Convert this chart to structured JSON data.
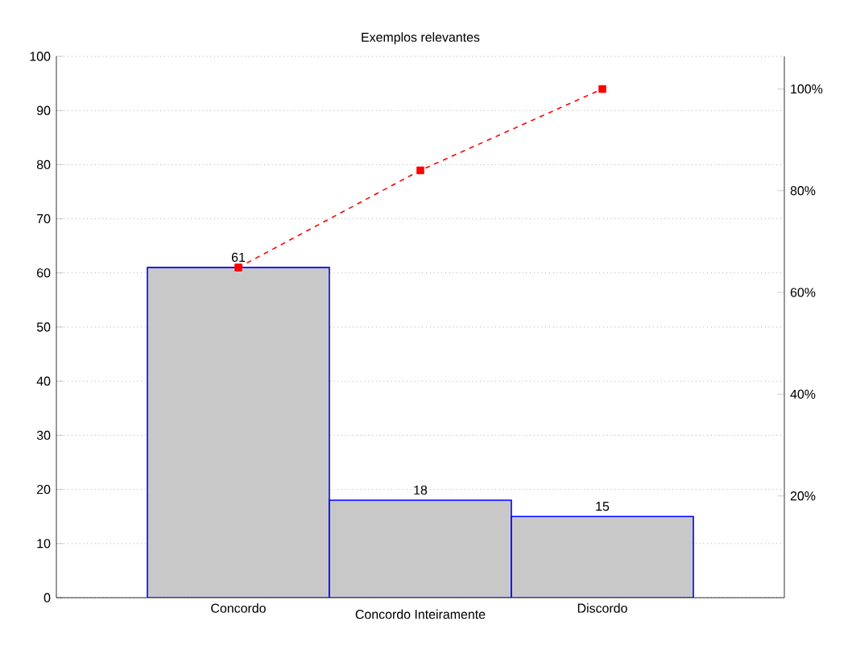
{
  "chart_data": {
    "type": "bar",
    "title": "Exemplos relevantes",
    "categories": [
      "Concordo",
      "Concordo Inteiramente",
      "Discordo"
    ],
    "series": [
      {
        "color": "#c8c8c8",
        "values": [
          61,
          18,
          15
        ],
        "value_labels": [
          "61",
          "18",
          "15"
        ]
      },
      {
        "type": "line",
        "axis": "y2",
        "color": "#ff0000",
        "values": [
          64.9,
          84.0,
          100
        ],
        "marker": "square",
        "line_style": "dashed"
      }
    ],
    "ylim": [
      0,
      100
    ],
    "yticks": [
      0,
      10,
      20,
      30,
      40,
      50,
      60,
      70,
      80,
      90,
      100
    ],
    "y2lim": [
      0,
      106.4
    ],
    "y2ticks": [
      {
        "value": 20,
        "label": "20%"
      },
      {
        "value": 40,
        "label": "40%"
      },
      {
        "value": 60,
        "label": "60%"
      },
      {
        "value": 80,
        "label": "80%"
      },
      {
        "value": 100,
        "label": "100%"
      }
    ],
    "grid": "y"
  }
}
